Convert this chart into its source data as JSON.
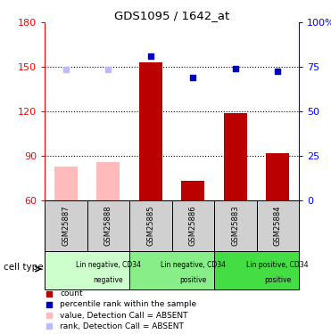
{
  "title": "GDS1095 / 1642_at",
  "samples": [
    "GSM25887",
    "GSM25888",
    "GSM25885",
    "GSM25886",
    "GSM25883",
    "GSM25884"
  ],
  "bar_values": [
    null,
    null,
    153,
    73,
    119,
    92
  ],
  "bar_values_absent": [
    83,
    86,
    null,
    null,
    null,
    null
  ],
  "rank_values_absent": [
    148,
    148,
    null,
    null,
    null,
    null
  ],
  "rank_values_present": [
    null,
    null,
    157,
    143,
    149,
    147
  ],
  "ylim": [
    60,
    180
  ],
  "ylim2": [
    0,
    100
  ],
  "yticks": [
    60,
    90,
    120,
    150,
    180
  ],
  "yticks2": [
    0,
    25,
    50,
    75,
    100
  ],
  "ytick_labels": [
    "60",
    "90",
    "120",
    "150",
    "180"
  ],
  "ytick_labels2": [
    "0",
    "25",
    "50",
    "75",
    "100%"
  ],
  "bar_color_present": "#bb0000",
  "bar_color_absent": "#ffbbbb",
  "rank_color_present": "#0000bb",
  "rank_color_absent": "#bbbbff",
  "cell_group_colors": [
    "#ccffcc",
    "#88ee88",
    "#44dd44"
  ],
  "cell_groups": [
    {
      "label_top": "Lin negative, CD34",
      "label_bot": "negative",
      "start": 0,
      "end": 2
    },
    {
      "label_top": "Lin negative, CD34",
      "label_bot": "positive",
      "start": 2,
      "end": 4
    },
    {
      "label_top": "Lin positive, CD34",
      "label_bot": "positive",
      "start": 4,
      "end": 6
    }
  ],
  "legend_items": [
    {
      "color": "#bb0000",
      "label": "count"
    },
    {
      "color": "#0000bb",
      "label": "percentile rank within the sample"
    },
    {
      "color": "#ffbbbb",
      "label": "value, Detection Call = ABSENT"
    },
    {
      "color": "#bbbbff",
      "label": "rank, Detection Call = ABSENT"
    }
  ],
  "cell_type_label": "cell type"
}
